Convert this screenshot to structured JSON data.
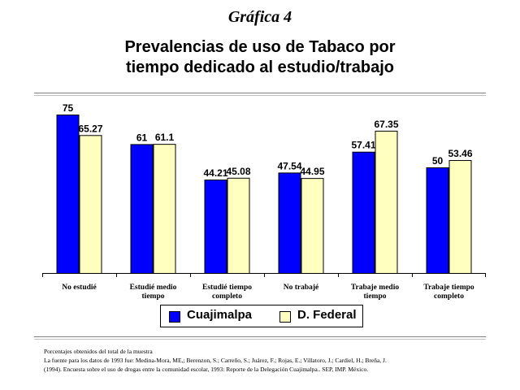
{
  "header": {
    "grafica": "Gráfica 4",
    "title_line1": "Prevalencias de uso de Tabaco por",
    "title_line2": "tiempo dedicado al estudio/trabajo"
  },
  "chart_data": {
    "type": "bar",
    "categories": [
      [
        "No estudié"
      ],
      [
        "Estudié medio",
        "tiempo"
      ],
      [
        "Estudié tiempo",
        "completo"
      ],
      [
        "No trabajé"
      ],
      [
        "Trabaje medio",
        "tiempo"
      ],
      [
        "Trabaje tiempo",
        "completo"
      ]
    ],
    "series": [
      {
        "name": "Cuajimalpa",
        "color": "#0000ff",
        "values": [
          75,
          61,
          44.21,
          47.54,
          57.41,
          50
        ]
      },
      {
        "name": "D. Federal",
        "color": "#ffffc0",
        "values": [
          65.27,
          61.1,
          45.08,
          44.95,
          67.35,
          53.46
        ]
      }
    ],
    "value_labels": [
      [
        "75",
        "61",
        "44.21",
        "47.54",
        "57.41",
        "50"
      ],
      [
        "65.27",
        "61.1",
        "45.08",
        "44.95",
        "67.35",
        "53.46"
      ]
    ],
    "ylim": [
      0,
      80
    ],
    "legend_position": "bottom-center",
    "grid": false
  },
  "legend": {
    "items": [
      {
        "label": "Cuajimalpa",
        "color": "#0000ff"
      },
      {
        "label": "D. Federal",
        "color": "#ffffc0"
      }
    ]
  },
  "footer": {
    "line1": "Porcentajes obtenidos del total de la muestra",
    "line2": "La fuente para los datos de 1993 fue: Medina-Mora, ME,; Berenzon, S.; Carreño, S.; Juárez, F.; Rojas, E.; Villatoro, J.; Cardiel, H.; Breña, J.",
    "line3": "(1994). Encuesta sobre el uso de drogas entre la comunidad escolar, 1993: Reporte de la Delegación Cuajimalpa.. SEP, IMP. México."
  }
}
